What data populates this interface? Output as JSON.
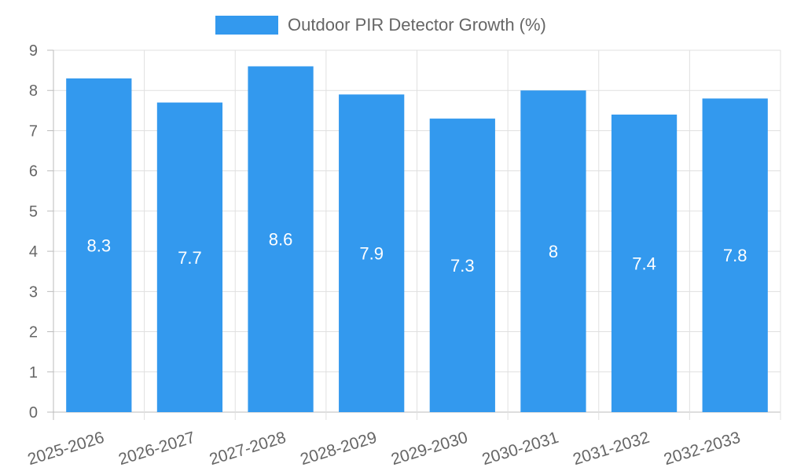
{
  "chart_data": {
    "type": "bar",
    "title": "",
    "xlabel": "",
    "ylabel": "",
    "categories": [
      "2025-2026",
      "2026-2027",
      "2027-2028",
      "2028-2029",
      "2029-2030",
      "2030-2031",
      "2031-2032",
      "2032-2033"
    ],
    "series": [
      {
        "name": "Outdoor PIR Detector Growth (%)",
        "values": [
          8.3,
          7.7,
          8.6,
          7.9,
          7.3,
          8,
          7.4,
          7.8
        ],
        "color": "#3399ee"
      }
    ],
    "ylim": [
      0,
      9
    ],
    "yticks": [
      0,
      1,
      2,
      3,
      4,
      5,
      6,
      7,
      8,
      9
    ],
    "grid": true,
    "legend_position": "top-center",
    "data_labels": true
  }
}
